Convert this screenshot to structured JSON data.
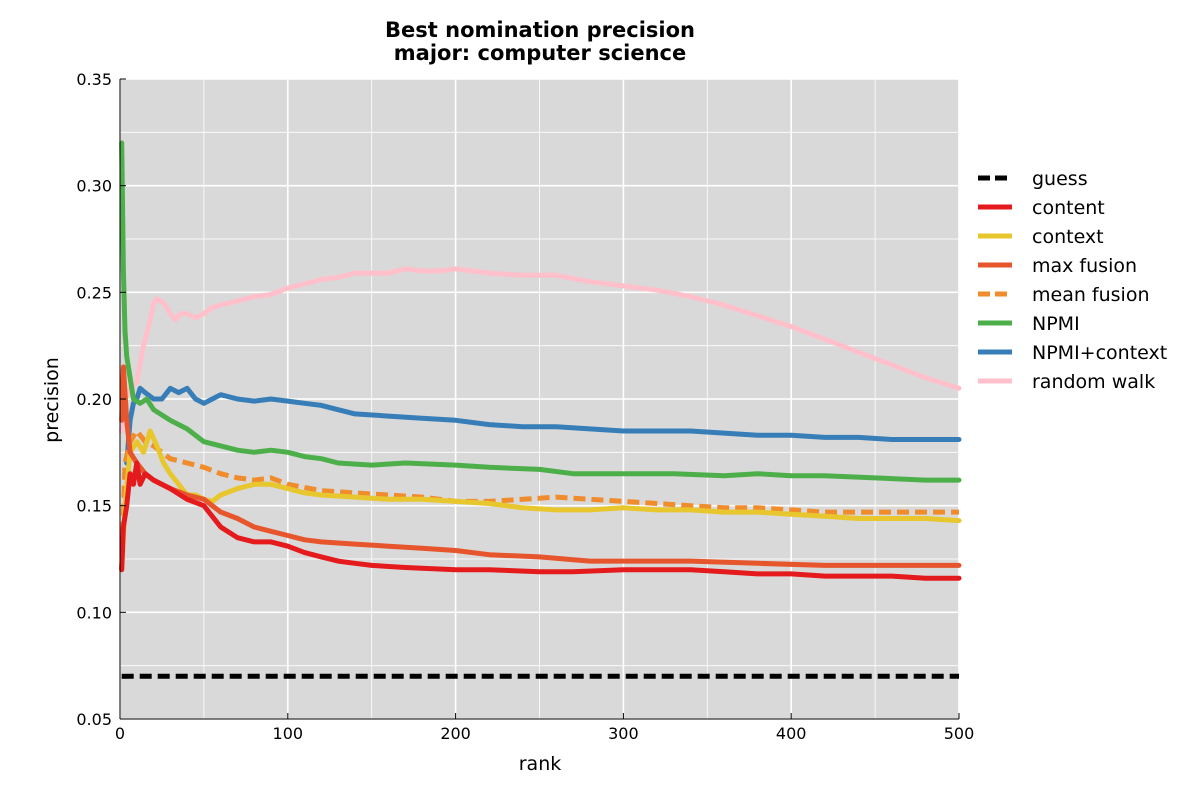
{
  "chart_data": {
    "type": "line",
    "title": "Best nomination precision",
    "subtitle": "major: computer science",
    "xlabel": "rank",
    "ylabel": "precision",
    "xlim": [
      0,
      500
    ],
    "ylim": [
      0.05,
      0.35
    ],
    "x_ticks": [
      "0",
      "100",
      "200",
      "300",
      "400",
      "500"
    ],
    "y_ticks": [
      "0.05",
      "0.10",
      "0.15",
      "0.20",
      "0.25",
      "0.30",
      "0.35"
    ],
    "grid": true,
    "legend_position": "right, outside plot",
    "background_color": "#d9d9d9",
    "series": [
      {
        "name": "guess",
        "color": "#000000",
        "dashed": true,
        "points": [
          [
            1,
            0.07
          ],
          [
            500,
            0.07
          ]
        ]
      },
      {
        "name": "content",
        "color": "#e41a1c",
        "dashed": false,
        "points": [
          [
            1,
            0.12
          ],
          [
            2,
            0.14
          ],
          [
            4,
            0.15
          ],
          [
            6,
            0.165
          ],
          [
            8,
            0.16
          ],
          [
            10,
            0.17
          ],
          [
            12,
            0.16
          ],
          [
            15,
            0.165
          ],
          [
            20,
            0.162
          ],
          [
            30,
            0.158
          ],
          [
            40,
            0.153
          ],
          [
            50,
            0.15
          ],
          [
            60,
            0.14
          ],
          [
            70,
            0.135
          ],
          [
            80,
            0.133
          ],
          [
            90,
            0.133
          ],
          [
            100,
            0.131
          ],
          [
            110,
            0.128
          ],
          [
            120,
            0.126
          ],
          [
            130,
            0.124
          ],
          [
            140,
            0.123
          ],
          [
            150,
            0.122
          ],
          [
            170,
            0.121
          ],
          [
            200,
            0.12
          ],
          [
            220,
            0.12
          ],
          [
            250,
            0.119
          ],
          [
            270,
            0.119
          ],
          [
            300,
            0.12
          ],
          [
            320,
            0.12
          ],
          [
            340,
            0.12
          ],
          [
            360,
            0.119
          ],
          [
            380,
            0.118
          ],
          [
            400,
            0.118
          ],
          [
            420,
            0.117
          ],
          [
            440,
            0.117
          ],
          [
            460,
            0.117
          ],
          [
            480,
            0.116
          ],
          [
            500,
            0.116
          ]
        ]
      },
      {
        "name": "context",
        "color": "#e8c62d",
        "dashed": false,
        "points": [
          [
            1,
            0.12
          ],
          [
            3,
            0.15
          ],
          [
            6,
            0.175
          ],
          [
            10,
            0.18
          ],
          [
            14,
            0.175
          ],
          [
            18,
            0.185
          ],
          [
            22,
            0.178
          ],
          [
            26,
            0.17
          ],
          [
            30,
            0.165
          ],
          [
            35,
            0.16
          ],
          [
            40,
            0.155
          ],
          [
            45,
            0.155
          ],
          [
            50,
            0.153
          ],
          [
            55,
            0.152
          ],
          [
            60,
            0.155
          ],
          [
            70,
            0.158
          ],
          [
            80,
            0.16
          ],
          [
            90,
            0.16
          ],
          [
            100,
            0.158
          ],
          [
            110,
            0.156
          ],
          [
            120,
            0.155
          ],
          [
            140,
            0.154
          ],
          [
            160,
            0.153
          ],
          [
            180,
            0.153
          ],
          [
            200,
            0.152
          ],
          [
            220,
            0.151
          ],
          [
            240,
            0.149
          ],
          [
            260,
            0.148
          ],
          [
            280,
            0.148
          ],
          [
            300,
            0.149
          ],
          [
            320,
            0.148
          ],
          [
            340,
            0.148
          ],
          [
            360,
            0.147
          ],
          [
            380,
            0.147
          ],
          [
            400,
            0.146
          ],
          [
            420,
            0.145
          ],
          [
            440,
            0.144
          ],
          [
            460,
            0.144
          ],
          [
            480,
            0.144
          ],
          [
            500,
            0.143
          ]
        ]
      },
      {
        "name": "max fusion",
        "color": "#e6552b",
        "dashed": false,
        "points": [
          [
            1,
            0.19
          ],
          [
            2,
            0.215
          ],
          [
            4,
            0.19
          ],
          [
            6,
            0.175
          ],
          [
            10,
            0.17
          ],
          [
            15,
            0.165
          ],
          [
            20,
            0.162
          ],
          [
            30,
            0.158
          ],
          [
            40,
            0.155
          ],
          [
            50,
            0.153
          ],
          [
            60,
            0.147
          ],
          [
            70,
            0.144
          ],
          [
            80,
            0.14
          ],
          [
            90,
            0.138
          ],
          [
            100,
            0.136
          ],
          [
            110,
            0.134
          ],
          [
            120,
            0.133
          ],
          [
            140,
            0.132
          ],
          [
            160,
            0.131
          ],
          [
            180,
            0.13
          ],
          [
            200,
            0.129
          ],
          [
            220,
            0.127
          ],
          [
            250,
            0.126
          ],
          [
            280,
            0.124
          ],
          [
            300,
            0.124
          ],
          [
            340,
            0.124
          ],
          [
            380,
            0.123
          ],
          [
            420,
            0.122
          ],
          [
            460,
            0.122
          ],
          [
            500,
            0.122
          ]
        ]
      },
      {
        "name": "mean fusion",
        "color": "#f08c2c",
        "dashed": true,
        "points": [
          [
            1,
            0.12
          ],
          [
            3,
            0.17
          ],
          [
            6,
            0.18
          ],
          [
            10,
            0.185
          ],
          [
            15,
            0.18
          ],
          [
            20,
            0.178
          ],
          [
            25,
            0.175
          ],
          [
            30,
            0.172
          ],
          [
            40,
            0.17
          ],
          [
            50,
            0.168
          ],
          [
            60,
            0.165
          ],
          [
            70,
            0.163
          ],
          [
            80,
            0.162
          ],
          [
            90,
            0.163
          ],
          [
            100,
            0.16
          ],
          [
            120,
            0.157
          ],
          [
            140,
            0.156
          ],
          [
            160,
            0.155
          ],
          [
            180,
            0.154
          ],
          [
            200,
            0.152
          ],
          [
            220,
            0.152
          ],
          [
            240,
            0.153
          ],
          [
            260,
            0.154
          ],
          [
            280,
            0.153
          ],
          [
            300,
            0.152
          ],
          [
            320,
            0.151
          ],
          [
            340,
            0.15
          ],
          [
            360,
            0.149
          ],
          [
            380,
            0.149
          ],
          [
            400,
            0.148
          ],
          [
            420,
            0.147
          ],
          [
            440,
            0.147
          ],
          [
            460,
            0.147
          ],
          [
            480,
            0.147
          ],
          [
            500,
            0.147
          ]
        ]
      },
      {
        "name": "NPMI",
        "color": "#4daf4a",
        "dashed": false,
        "points": [
          [
            1,
            0.32
          ],
          [
            2,
            0.26
          ],
          [
            3,
            0.232
          ],
          [
            4,
            0.22
          ],
          [
            6,
            0.21
          ],
          [
            8,
            0.2
          ],
          [
            12,
            0.198
          ],
          [
            16,
            0.2
          ],
          [
            20,
            0.195
          ],
          [
            30,
            0.19
          ],
          [
            40,
            0.186
          ],
          [
            50,
            0.18
          ],
          [
            60,
            0.178
          ],
          [
            70,
            0.176
          ],
          [
            80,
            0.175
          ],
          [
            90,
            0.176
          ],
          [
            100,
            0.175
          ],
          [
            110,
            0.173
          ],
          [
            120,
            0.172
          ],
          [
            130,
            0.17
          ],
          [
            150,
            0.169
          ],
          [
            170,
            0.17
          ],
          [
            200,
            0.169
          ],
          [
            220,
            0.168
          ],
          [
            250,
            0.167
          ],
          [
            270,
            0.165
          ],
          [
            300,
            0.165
          ],
          [
            330,
            0.165
          ],
          [
            360,
            0.164
          ],
          [
            380,
            0.165
          ],
          [
            400,
            0.164
          ],
          [
            420,
            0.164
          ],
          [
            450,
            0.163
          ],
          [
            480,
            0.162
          ],
          [
            500,
            0.162
          ]
        ]
      },
      {
        "name": "NPMI+context",
        "color": "#377eb8",
        "dashed": false,
        "points": [
          [
            4,
            0.17
          ],
          [
            6,
            0.19
          ],
          [
            8,
            0.198
          ],
          [
            10,
            0.2
          ],
          [
            12,
            0.205
          ],
          [
            15,
            0.203
          ],
          [
            20,
            0.2
          ],
          [
            25,
            0.2
          ],
          [
            30,
            0.205
          ],
          [
            35,
            0.203
          ],
          [
            40,
            0.205
          ],
          [
            45,
            0.2
          ],
          [
            50,
            0.198
          ],
          [
            55,
            0.2
          ],
          [
            60,
            0.202
          ],
          [
            70,
            0.2
          ],
          [
            80,
            0.199
          ],
          [
            90,
            0.2
          ],
          [
            100,
            0.199
          ],
          [
            110,
            0.198
          ],
          [
            120,
            0.197
          ],
          [
            130,
            0.195
          ],
          [
            140,
            0.193
          ],
          [
            160,
            0.192
          ],
          [
            180,
            0.191
          ],
          [
            200,
            0.19
          ],
          [
            220,
            0.188
          ],
          [
            240,
            0.187
          ],
          [
            260,
            0.187
          ],
          [
            280,
            0.186
          ],
          [
            300,
            0.185
          ],
          [
            320,
            0.185
          ],
          [
            340,
            0.185
          ],
          [
            360,
            0.184
          ],
          [
            380,
            0.183
          ],
          [
            400,
            0.183
          ],
          [
            420,
            0.182
          ],
          [
            440,
            0.182
          ],
          [
            460,
            0.181
          ],
          [
            480,
            0.181
          ],
          [
            500,
            0.181
          ]
        ]
      },
      {
        "name": "random walk",
        "color": "#ffc0cb",
        "dashed": false,
        "points": [
          [
            1,
            0.185
          ],
          [
            3,
            0.2
          ],
          [
            6,
            0.205
          ],
          [
            10,
            0.208
          ],
          [
            14,
            0.225
          ],
          [
            18,
            0.237
          ],
          [
            20,
            0.245
          ],
          [
            22,
            0.247
          ],
          [
            26,
            0.245
          ],
          [
            30,
            0.24
          ],
          [
            33,
            0.237
          ],
          [
            36,
            0.24
          ],
          [
            40,
            0.24
          ],
          [
            45,
            0.238
          ],
          [
            50,
            0.24
          ],
          [
            55,
            0.243
          ],
          [
            60,
            0.244
          ],
          [
            70,
            0.246
          ],
          [
            80,
            0.248
          ],
          [
            90,
            0.249
          ],
          [
            100,
            0.252
          ],
          [
            110,
            0.254
          ],
          [
            120,
            0.256
          ],
          [
            130,
            0.257
          ],
          [
            140,
            0.259
          ],
          [
            150,
            0.259
          ],
          [
            160,
            0.259
          ],
          [
            170,
            0.261
          ],
          [
            180,
            0.26
          ],
          [
            190,
            0.26
          ],
          [
            200,
            0.261
          ],
          [
            210,
            0.26
          ],
          [
            220,
            0.259
          ],
          [
            240,
            0.258
          ],
          [
            260,
            0.258
          ],
          [
            280,
            0.255
          ],
          [
            300,
            0.253
          ],
          [
            320,
            0.251
          ],
          [
            340,
            0.248
          ],
          [
            360,
            0.244
          ],
          [
            380,
            0.239
          ],
          [
            400,
            0.234
          ],
          [
            420,
            0.228
          ],
          [
            440,
            0.222
          ],
          [
            460,
            0.216
          ],
          [
            480,
            0.21
          ],
          [
            500,
            0.205
          ]
        ]
      }
    ]
  }
}
